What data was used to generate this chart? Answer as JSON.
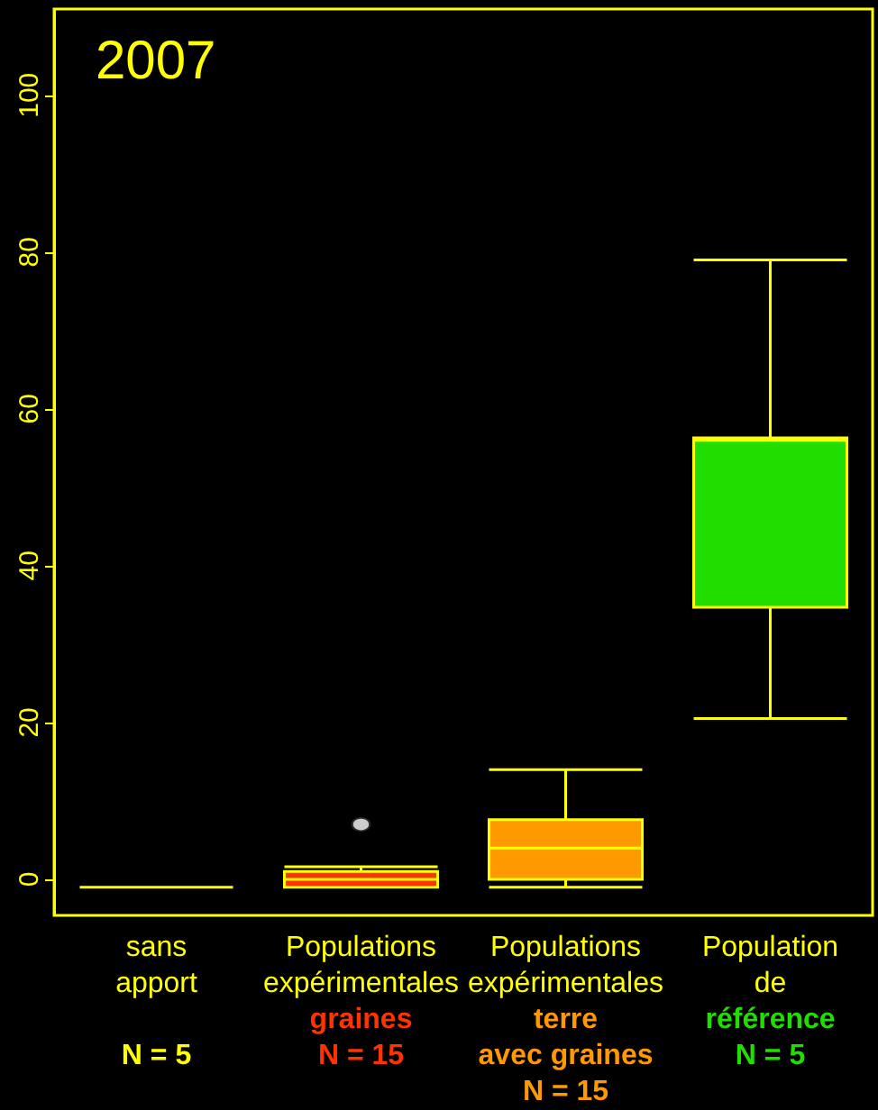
{
  "chart_data": {
    "type": "box",
    "title": "2007",
    "categories": [
      "sans\napport\n\nN = 5",
      "Populations\nexpérimentales\ngraines\nN = 15",
      "Populations\nexpérimentales\nterre\navec graines\nN = 15",
      "Population\nde\nréférence\nN = 5"
    ],
    "boxes": [
      {
        "low": -1,
        "q1": -1,
        "median": -1,
        "q3": -1,
        "high": -1
      },
      {
        "low": -1,
        "q1": -1,
        "median": 0,
        "q3": 1,
        "high": 1.6,
        "outliers": [
          7
        ]
      },
      {
        "low": -1,
        "q1": 0,
        "median": 4,
        "q3": 7.6,
        "high": 14
      },
      {
        "low": 20.5,
        "q1": 34.7,
        "median": 56,
        "q3": 56.3,
        "high": 79
      }
    ],
    "colors": [
      "#ffff00",
      "#ff3300",
      "#ff9900",
      "#22dd00"
    ],
    "ylim": [
      -4.6,
      111
    ],
    "yticks": [
      0,
      20,
      40,
      60,
      80,
      100
    ]
  }
}
